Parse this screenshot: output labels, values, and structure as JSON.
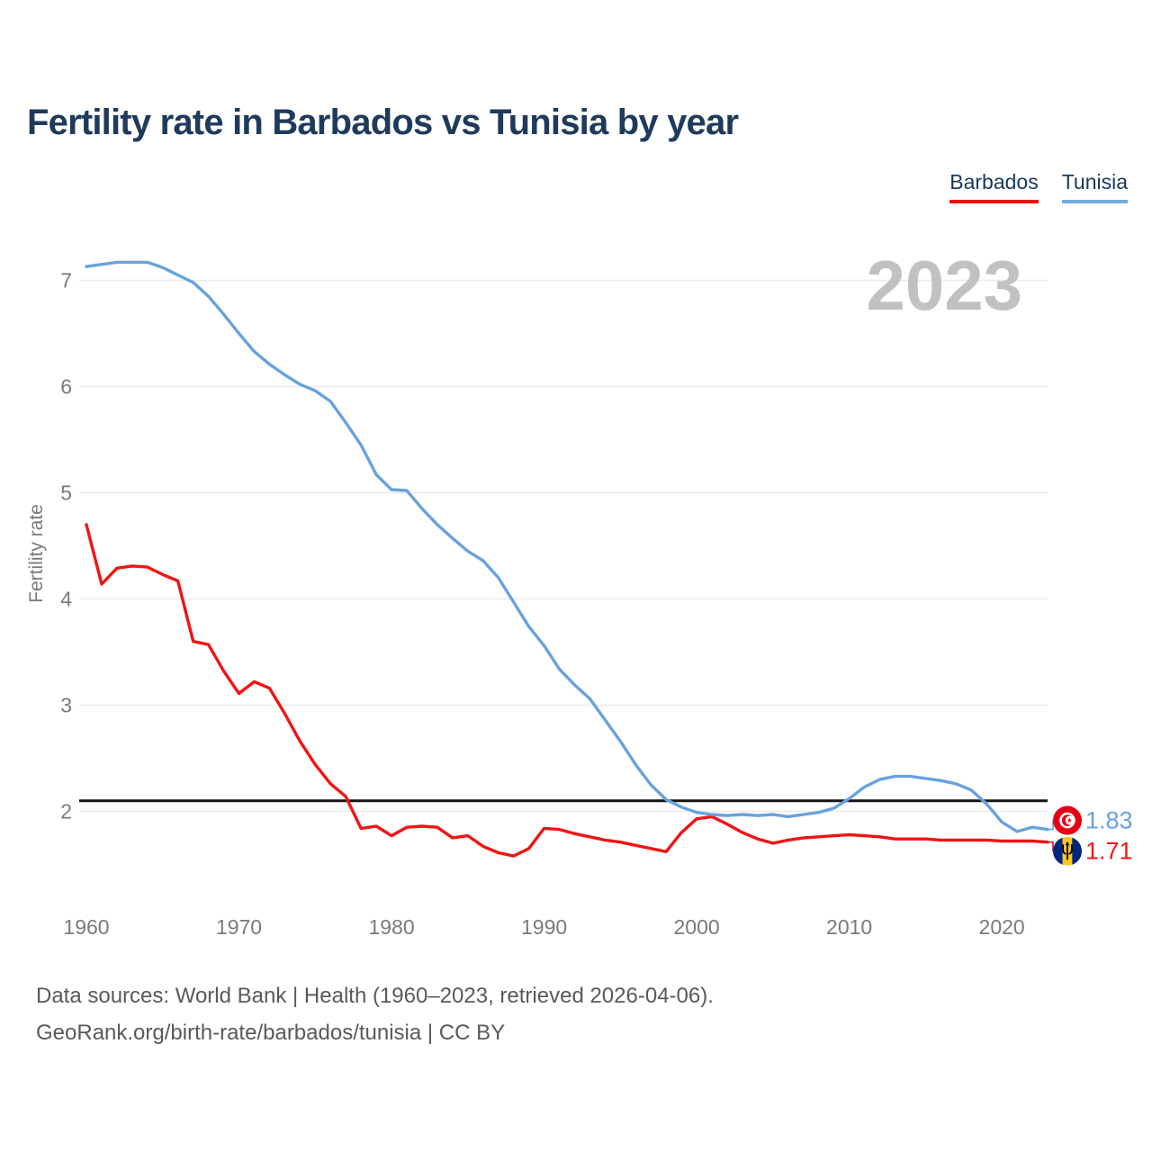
{
  "title": "Fertility rate in Barbados vs Tunisia by year",
  "legend": {
    "items": [
      {
        "label": "Barbados",
        "color": "#f40b0b"
      },
      {
        "label": "Tunisia",
        "color": "#74abde"
      }
    ]
  },
  "watermark": "2023",
  "footer": {
    "line1": "Data sources: World Bank | Health (1960–2023, retrieved 2026-04-06).",
    "line2": "GeoRank.org/birth-rate/barbados/tunisia | CC BY"
  },
  "chart_data": {
    "type": "line",
    "title": "Fertility rate in Barbados vs Tunisia by year",
    "xlabel": "",
    "ylabel": "Fertility rate",
    "x_range": [
      1960,
      2023
    ],
    "xticks": [
      1960,
      1970,
      1980,
      1990,
      2000,
      2010,
      2020
    ],
    "yticks": [
      2,
      3,
      4,
      5,
      6,
      7
    ],
    "ylim": [
      1.3,
      7.3
    ],
    "grid": "horizontal",
    "legend_position": "top-right",
    "reference_line": {
      "value": 2.1,
      "color": "#141414"
    },
    "series": [
      {
        "name": "Barbados",
        "color": "#f01414",
        "end_label": "1.71",
        "flag_icon": "barbados-flag-icon",
        "values": [
          4.7,
          4.14,
          4.29,
          4.31,
          4.3,
          4.23,
          4.17,
          3.6,
          3.57,
          3.32,
          3.11,
          3.22,
          3.16,
          2.92,
          2.66,
          2.44,
          2.26,
          2.14,
          1.84,
          1.86,
          1.77,
          1.85,
          1.86,
          1.85,
          1.75,
          1.77,
          1.67,
          1.61,
          1.58,
          1.65,
          1.84,
          1.83,
          1.79,
          1.76,
          1.73,
          1.71,
          1.68,
          1.65,
          1.62,
          1.8,
          1.93,
          1.95,
          1.88,
          1.8,
          1.74,
          1.7,
          1.73,
          1.75,
          1.76,
          1.77,
          1.78,
          1.77,
          1.76,
          1.74,
          1.74,
          1.74,
          1.73,
          1.73,
          1.73,
          1.73,
          1.72,
          1.72,
          1.72,
          1.71
        ]
      },
      {
        "name": "Tunisia",
        "color": "#68a2dd",
        "end_label": "1.83",
        "flag_icon": "tunisia-flag-icon",
        "values": [
          7.13,
          7.15,
          7.17,
          7.17,
          7.17,
          7.12,
          7.05,
          6.98,
          6.85,
          6.68,
          6.5,
          6.33,
          6.21,
          6.11,
          6.02,
          5.96,
          5.86,
          5.66,
          5.45,
          5.17,
          5.03,
          5.02,
          4.85,
          4.7,
          4.57,
          4.45,
          4.36,
          4.2,
          3.97,
          3.74,
          3.56,
          3.34,
          3.19,
          3.06,
          2.86,
          2.66,
          2.44,
          2.25,
          2.11,
          2.04,
          1.99,
          1.97,
          1.96,
          1.97,
          1.96,
          1.97,
          1.95,
          1.97,
          1.99,
          2.03,
          2.12,
          2.23,
          2.3,
          2.33,
          2.33,
          2.31,
          2.29,
          2.26,
          2.2,
          2.07,
          1.9,
          1.81,
          1.85,
          1.83
        ]
      }
    ]
  }
}
